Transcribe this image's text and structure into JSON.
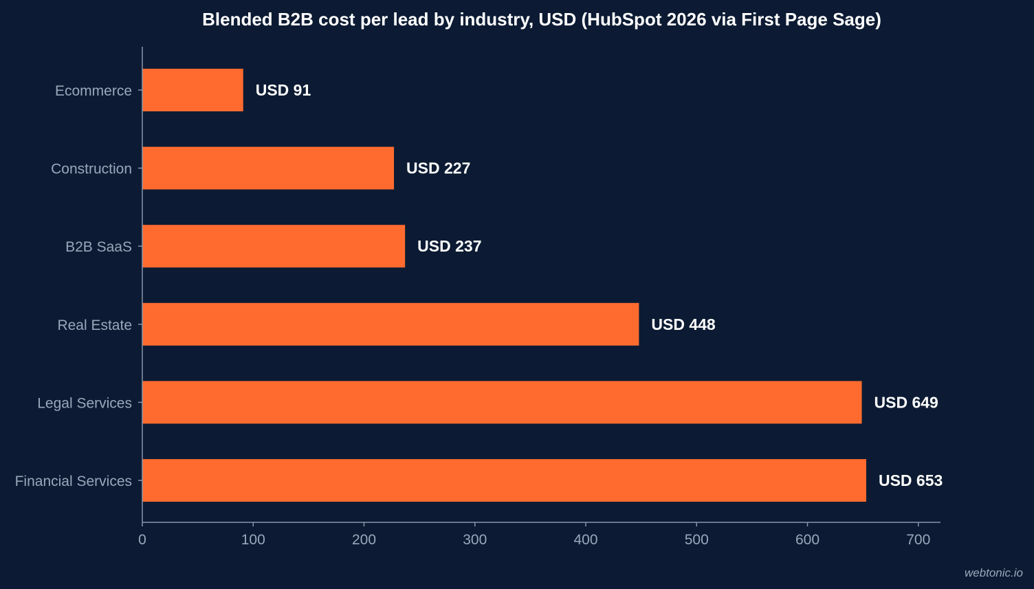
{
  "chart_data": {
    "type": "bar",
    "orientation": "horizontal",
    "title": "Blended B2B cost per lead by industry, USD (HubSpot 2026 via First Page Sage)",
    "categories": [
      "Ecommerce",
      "Construction",
      "B2B SaaS",
      "Real Estate",
      "Legal Services",
      "Financial Services"
    ],
    "values": [
      91,
      227,
      237,
      448,
      649,
      653
    ],
    "value_labels": [
      "USD 91",
      "USD 227",
      "USD 237",
      "USD 448",
      "USD 649",
      "USD 653"
    ],
    "xlabel": "",
    "ylabel": "",
    "xlim": [
      0,
      720
    ],
    "xticks": [
      0,
      100,
      200,
      300,
      400,
      500,
      600,
      700
    ],
    "grid": false,
    "bar_color": "#ff6b2f",
    "axis_color": "#8796ab",
    "text_color": "#9aa7bb"
  },
  "watermark": "webtonic.io"
}
